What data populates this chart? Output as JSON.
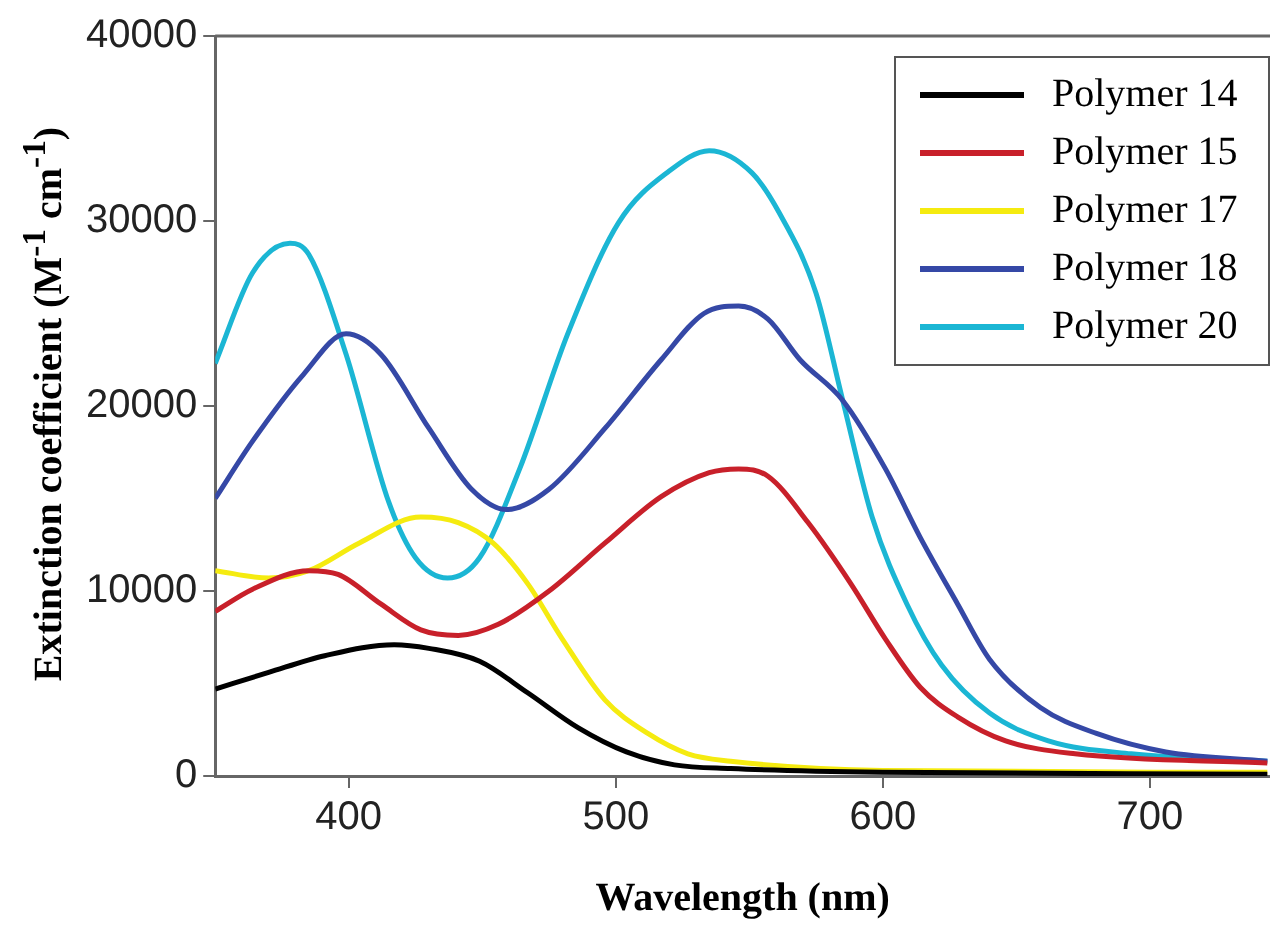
{
  "chart_data": {
    "type": "line",
    "xlabel": "Wavelength (nm)",
    "ylabel": "Extinction coefficient (M$^{-1}$ cm$^{-1}$)",
    "xlim": [
      350,
      745
    ],
    "xticks": [
      400,
      500,
      600,
      700
    ],
    "ylim": [
      0,
      40000
    ],
    "yticks": [
      0,
      10000,
      20000,
      30000,
      40000
    ],
    "grid": false,
    "legend": "top right",
    "marker": "none",
    "line_style": "solid",
    "series": [
      {
        "name": "Polymer 14",
        "color": "#000000",
        "x": [
          350,
          370,
          391,
          417,
          430,
          449,
          467,
          486,
          504,
          522,
          543,
          600,
          744
        ],
        "values": [
          4700,
          5600,
          6500,
          7100,
          6900,
          6200,
          4500,
          2600,
          1300,
          600,
          400,
          200,
          100
        ]
      },
      {
        "name": "Polymer 15",
        "color": "#c8202a",
        "x": [
          350,
          364,
          385,
          396,
          412,
          427,
          441,
          456,
          475,
          496,
          517,
          535,
          546,
          557,
          572,
          588,
          601,
          614,
          628,
          646,
          672,
          744
        ],
        "values": [
          8900,
          10100,
          11100,
          10900,
          9300,
          7900,
          7600,
          8200,
          10000,
          12600,
          15100,
          16400,
          16600,
          16200,
          13700,
          10400,
          7400,
          4800,
          3200,
          1900,
          1200,
          700
        ]
      },
      {
        "name": "Polymer 17",
        "color": "#f5eb10",
        "x": [
          350,
          370,
          385,
          404,
          427,
          441,
          454,
          467,
          480,
          496,
          512,
          527,
          543,
          600,
          744
        ],
        "values": [
          11100,
          10700,
          11100,
          12600,
          14000,
          13700,
          12600,
          10400,
          7400,
          4100,
          2300,
          1200,
          800,
          300,
          200
        ]
      },
      {
        "name": "Polymer 18",
        "color": "#3548a6",
        "x": [
          350,
          364,
          383,
          399,
          412,
          430,
          446,
          459,
          475,
          496,
          517,
          533,
          546,
          557,
          569,
          585,
          601,
          614,
          628,
          640,
          659,
          680,
          706,
          744
        ],
        "values": [
          15000,
          18100,
          21700,
          23900,
          22800,
          18800,
          15500,
          14400,
          15500,
          18800,
          22500,
          25000,
          25400,
          24700,
          22500,
          20300,
          16600,
          12900,
          9300,
          6300,
          3700,
          2300,
          1300,
          800
        ]
      },
      {
        "name": "Polymer 20",
        "color": "#1bb6d4",
        "x": [
          350,
          364,
          378,
          385,
          399,
          415,
          425,
          437,
          449,
          464,
          482,
          501,
          520,
          535,
          551,
          561,
          575,
          585,
          596,
          609,
          622,
          640,
          662,
          693,
          744
        ],
        "values": [
          22300,
          27200,
          28800,
          28200,
          22800,
          14800,
          11800,
          10700,
          11800,
          16600,
          23900,
          29900,
          32700,
          33800,
          32600,
          30500,
          26100,
          20300,
          14000,
          9300,
          6000,
          3400,
          1900,
          1200,
          800
        ]
      }
    ]
  }
}
